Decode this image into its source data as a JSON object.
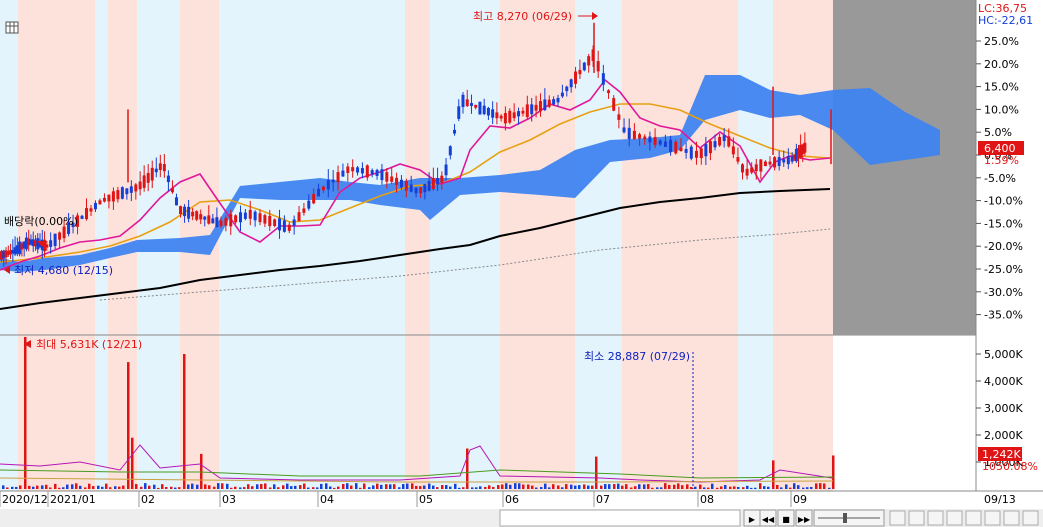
{
  "price_panel": {
    "lc_label": "LC:36,75",
    "hc_label": "HC:-22,61",
    "current_price": "6,400",
    "current_change": "1.59%",
    "dividend_note": "배당락(0.00%)",
    "high_note": "최고 8,270 (06/29)",
    "low_note": "최저 4,680 (12/15)"
  },
  "volume_panel": {
    "max_note": "최대 5,631K (12/21)",
    "min_note": "최소 28,887 (07/29)",
    "current_volume": "1,242K",
    "current_ratio": "1050.08%"
  },
  "x_axis": {
    "labels": [
      "2020/12",
      "2021/01",
      "02",
      "03",
      "04",
      "05",
      "06",
      "07",
      "08",
      "09"
    ],
    "right_label": "09/13"
  },
  "colors": {
    "pink_band": "#fde2dc",
    "blue_band": "#e3f4fc",
    "cloud": "#3f84f0",
    "candle_up": "#e01414",
    "candle_down": "#1440d8",
    "ma5": "#e0179a",
    "ma20": "#e8a010",
    "ma120": "#000000",
    "future_area": "#999999"
  },
  "chart_data": [
    {
      "type": "candlestick",
      "y_axis_labels": [
        "25.0%",
        "20.0%",
        "15.0%",
        "10.0%",
        "5.0%",
        "0.0%",
        "-5.0%",
        "-10.0%",
        "-15.0%",
        "-20.0%",
        "-25.0%",
        "-30.0%",
        "-35.0%"
      ],
      "ylim_percent": [
        -38,
        28
      ],
      "high": {
        "value": 8270,
        "date": "06/29"
      },
      "low": {
        "value": 4680,
        "date": "12/15"
      },
      "last_close": 6400,
      "series": [
        {
          "name": "close_trend",
          "x_month": [
            0,
            0.3,
            0.6,
            1,
            1.3,
            1.6,
            2,
            2.3,
            2.5,
            3,
            3.3,
            3.7,
            4,
            4.3,
            4.6,
            5,
            5.3,
            5.5,
            6,
            6.3,
            6.6,
            7,
            7.3,
            7.6,
            8,
            8.3,
            8.5,
            8.7,
            9,
            9.3
          ],
          "y_percent": [
            -22,
            -21,
            -19,
            -20,
            -15,
            -10,
            -7,
            -2,
            -12,
            -15,
            -13,
            -16,
            -8,
            -3,
            -4,
            -8,
            -5,
            12,
            8,
            10,
            12,
            22,
            5,
            3,
            0,
            4,
            -4,
            -2,
            -1,
            1.6
          ]
        }
      ]
    },
    {
      "type": "bar",
      "y_axis_labels": [
        "5,000K",
        "4,000K",
        "3,000K",
        "2,000K",
        "1,000K"
      ],
      "ylim_k": [
        0,
        5800
      ],
      "max": {
        "value_k": 5631,
        "date": "12/21"
      },
      "min": {
        "value": 28887,
        "date": "07/29"
      },
      "last_k": 1242
    }
  ]
}
